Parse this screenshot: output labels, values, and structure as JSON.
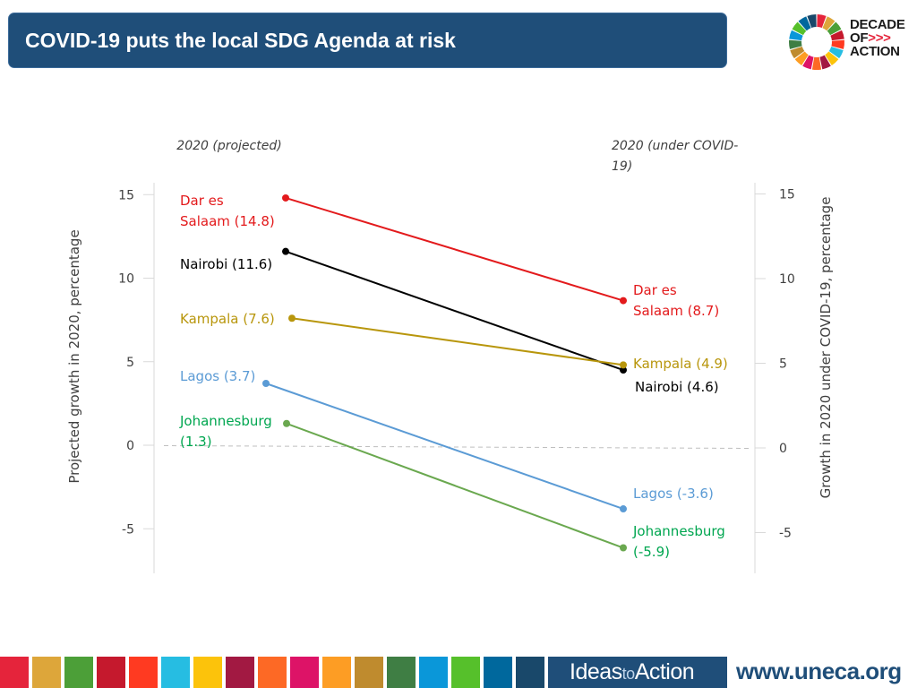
{
  "header": {
    "title": "COVID-19 puts the local SDG Agenda at risk"
  },
  "logo": {
    "line1": "DECADE",
    "line2": "OF",
    "arrows": ">>>",
    "line3": "ACTION"
  },
  "chart_data": {
    "type": "slope",
    "left_header": "2020 (projected)",
    "right_header": "2020 (under COVID-19)",
    "ylabel_left": "Projected growth in 2020, percentage",
    "ylabel_right": "Growth in 2020 under COVID-19, percentage",
    "left_ticks": [
      15,
      10,
      5,
      0,
      -5
    ],
    "right_ticks": [
      15,
      10,
      5,
      0,
      -5
    ],
    "ylim": [
      -7.5,
      15.5
    ],
    "series": [
      {
        "name": "Dar es Salaam",
        "start": 14.8,
        "end": 8.7,
        "color": "#e31a1c",
        "left_label": [
          "Dar es",
          "Salaam (14.8)"
        ],
        "right_label": [
          "Dar es",
          "Salaam (8.7)"
        ]
      },
      {
        "name": "Nairobi",
        "start": 11.6,
        "end": 4.6,
        "color": "#000000",
        "left_label": [
          "Nairobi (11.6)"
        ],
        "right_label": [
          "Nairobi (4.6)"
        ]
      },
      {
        "name": "Kampala",
        "start": 7.6,
        "end": 4.9,
        "color": "#b8960c",
        "left_label": [
          "Kampala (7.6)"
        ],
        "right_label": [
          "Kampala (4.9)"
        ]
      },
      {
        "name": "Lagos",
        "start": 3.7,
        "end": -3.6,
        "color": "#5b9bd5",
        "left_label": [
          "Lagos (3.7)"
        ],
        "right_label": [
          "Lagos (-3.6)"
        ]
      },
      {
        "name": "Johannesburg",
        "start": 1.3,
        "end": -5.9,
        "color": "#6aa84f",
        "left_label": [
          "Johannesburg",
          "(1.3)"
        ],
        "right_label": [
          "Johannesburg",
          "(-5.9)"
        ],
        "label_color": "#00a650"
      }
    ]
  },
  "footer": {
    "ideas_pre": "Ideas",
    "ideas_to": "to",
    "ideas_post": "Action",
    "url": "www.uneca.org",
    "sdg_colors": [
      "#e5243b",
      "#dda63a",
      "#4c9f38",
      "#c5192d",
      "#ff3a21",
      "#26bde2",
      "#fcc30b",
      "#a21942",
      "#fd6925",
      "#dd1367",
      "#fd9d24",
      "#bf8b2e",
      "#3f7e44",
      "#0a97d9",
      "#56c02b",
      "#00689d",
      "#19486a"
    ]
  }
}
